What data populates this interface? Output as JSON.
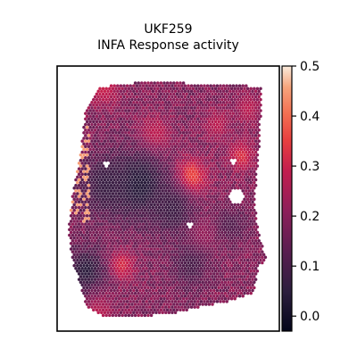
{
  "chart_data": {
    "type": "heatmap",
    "title": "UKF259",
    "subtitle": "INFA Response activity",
    "xlabel": "",
    "ylabel": "",
    "grid": false,
    "colormap": "rocket",
    "colorbar": {
      "vmin": -0.03,
      "vmax": 0.5,
      "ticks": [
        0.0,
        0.1,
        0.2,
        0.3,
        0.4,
        0.5
      ],
      "tick_labels": [
        "0.0",
        "0.1",
        "0.2",
        "0.3",
        "0.4",
        "0.5"
      ]
    },
    "background_level": 0.19,
    "hotspots": [
      {
        "x": 0.09,
        "y": 0.93,
        "value": 0.47,
        "radius": 0.045
      },
      {
        "x": 0.21,
        "y": 0.92,
        "value": 0.3,
        "radius": 0.05
      },
      {
        "x": 0.6,
        "y": 0.58,
        "value": 0.4,
        "radius": 0.05
      },
      {
        "x": 0.44,
        "y": 0.74,
        "value": 0.3,
        "radius": 0.05
      },
      {
        "x": 0.83,
        "y": 0.66,
        "value": 0.33,
        "radius": 0.04
      },
      {
        "x": 0.86,
        "y": 0.84,
        "value": 0.28,
        "radius": 0.04
      },
      {
        "x": 0.29,
        "y": 0.25,
        "value": 0.33,
        "radius": 0.04
      },
      {
        "x": 0.72,
        "y": 0.78,
        "value": 0.28,
        "radius": 0.04
      },
      {
        "x": 0.18,
        "y": 0.07,
        "value": 0.28,
        "radius": 0.05
      },
      {
        "x": 0.65,
        "y": 0.36,
        "value": 0.25,
        "radius": 0.05
      }
    ],
    "coldspots": [
      {
        "x": 0.37,
        "y": 0.55,
        "value": 0.03,
        "radius": 0.09
      },
      {
        "x": 0.22,
        "y": 0.55,
        "value": 0.07,
        "radius": 0.08
      },
      {
        "x": 0.13,
        "y": 0.23,
        "value": 0.05,
        "radius": 0.06
      },
      {
        "x": 0.52,
        "y": 0.46,
        "value": 0.08,
        "radius": 0.07
      },
      {
        "x": 0.6,
        "y": 0.25,
        "value": 0.1,
        "radius": 0.06
      },
      {
        "x": 0.78,
        "y": 0.4,
        "value": 0.12,
        "radius": 0.05
      }
    ]
  }
}
